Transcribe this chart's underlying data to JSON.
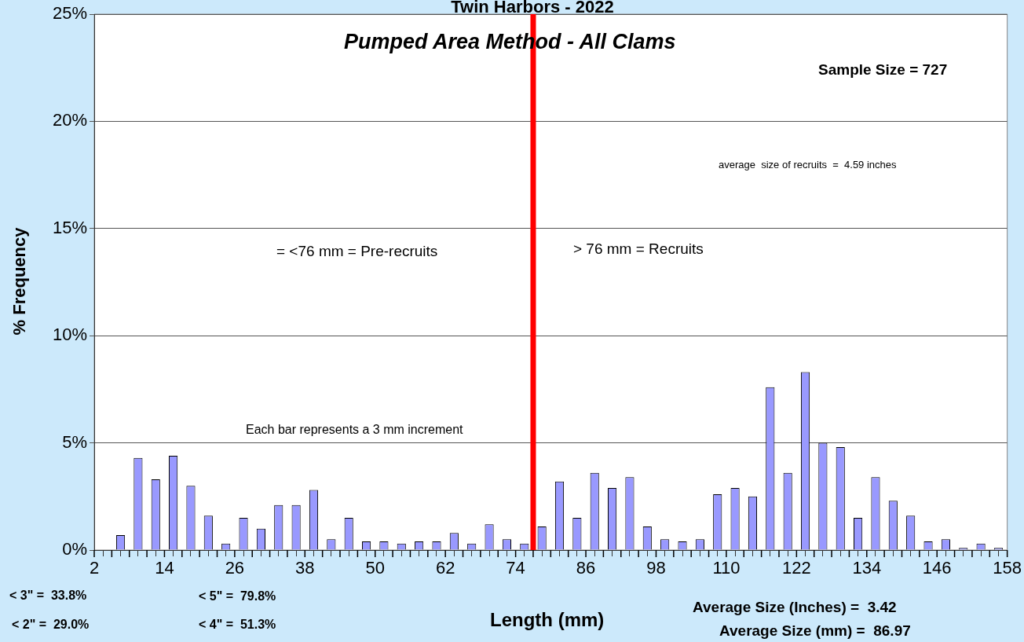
{
  "chart_data": {
    "type": "histogram",
    "title": "Twin Harbors - 2022",
    "subtitle": "Pumped Area Method - All Clams",
    "xlabel": "Length (mm)",
    "ylabel": "% Frequency",
    "bins": [
      2,
      5,
      8,
      11,
      14,
      17,
      20,
      23,
      26,
      29,
      32,
      35,
      38,
      41,
      44,
      47,
      50,
      53,
      56,
      59,
      62,
      65,
      68,
      71,
      74,
      77,
      80,
      83,
      86,
      89,
      92,
      95,
      98,
      101,
      104,
      107,
      110,
      113,
      116,
      119,
      122,
      125,
      128,
      131,
      134,
      137,
      140,
      143,
      146,
      149,
      152,
      155,
      158
    ],
    "values": [
      0,
      0.7,
      4.3,
      3.3,
      4.4,
      3.0,
      1.6,
      0.3,
      1.5,
      1.0,
      2.1,
      2.1,
      2.8,
      0.5,
      1.5,
      0.4,
      0.4,
      0.3,
      0.4,
      0.4,
      0.8,
      0.3,
      1.2,
      0.5,
      0.3,
      1.1,
      3.2,
      1.5,
      3.6,
      2.9,
      3.4,
      1.1,
      0.5,
      0.4,
      0.5,
      2.6,
      2.9,
      2.5,
      7.6,
      3.6,
      8.3,
      5.0,
      4.8,
      1.5,
      3.4,
      2.3,
      1.6,
      0.4,
      0.5,
      0.1,
      0.3,
      0.1
    ],
    "color": "#9999ff",
    "xlim": [
      2,
      158
    ],
    "xticks": [
      2,
      {
        "value": 5,
        "label": null
      },
      {
        "value": 8,
        "label": null
      },
      {
        "value": 11,
        "label": null
      },
      14,
      {
        "value": 17,
        "label": null
      },
      {
        "value": 20,
        "label": null
      },
      {
        "value": 23,
        "label": null
      },
      26,
      {
        "value": 29,
        "label": null
      },
      {
        "value": 32,
        "label": null
      },
      {
        "value": 35,
        "label": null
      },
      38,
      {
        "value": 41,
        "label": null
      },
      {
        "value": 44,
        "label": null
      },
      {
        "value": 47,
        "label": null
      },
      50,
      {
        "value": 53,
        "label": null
      },
      {
        "value": 56,
        "label": null
      },
      {
        "value": 59,
        "label": null
      },
      62,
      {
        "value": 65,
        "label": null
      },
      {
        "value": 68,
        "label": null
      },
      {
        "value": 71,
        "label": null
      },
      74,
      {
        "value": 77,
        "label": null
      },
      {
        "value": 80,
        "label": null
      },
      {
        "value": 83,
        "label": null
      },
      86,
      {
        "value": 89,
        "label": null
      },
      {
        "value": 92,
        "label": null
      },
      {
        "value": 95,
        "label": null
      },
      98,
      {
        "value": 101,
        "label": null
      },
      {
        "value": 104,
        "label": null
      },
      {
        "value": 107,
        "label": null
      },
      110,
      {
        "value": 113,
        "label": null
      },
      {
        "value": 116,
        "label": null
      },
      {
        "value": 119,
        "label": null
      },
      122,
      {
        "value": 125,
        "label": null
      },
      {
        "value": 128,
        "label": null
      },
      {
        "value": 131,
        "label": null
      },
      134,
      {
        "value": 137,
        "label": null
      },
      {
        "value": 140,
        "label": null
      },
      {
        "value": 143,
        "label": null
      },
      146,
      {
        "value": 149,
        "label": null
      },
      {
        "value": 152,
        "label": null
      },
      {
        "value": 155,
        "label": null
      },
      158
    ],
    "ylim": [
      0,
      25
    ],
    "yticks": [
      {
        "value": 0,
        "label": "0%"
      },
      {
        "value": 5,
        "label": "5%"
      },
      {
        "value": 10,
        "label": "10%"
      },
      {
        "value": 15,
        "label": "15%"
      },
      {
        "value": 20,
        "label": "20%"
      },
      {
        "value": 25,
        "label": "25%"
      }
    ],
    "grid": "y",
    "legend": false,
    "ref_lines": [
      {
        "axis": "x",
        "value": 77,
        "color": "#ff0000"
      }
    ],
    "annotations": [
      "= <76 mm = Pre-recruits",
      "> 76 mm = Recruits",
      "Each bar represents a 3 mm increment",
      "Sample Size = 727",
      "average  size of recruits  =  4.59 inches",
      "< 3\" =  33.8%",
      "< 5\" =  79.8%",
      "< 2\" =  29.0%",
      "< 4\" =  51.3%",
      "Average Size (Inches) =  3.42",
      "Average Size (mm) =  86.97"
    ]
  }
}
